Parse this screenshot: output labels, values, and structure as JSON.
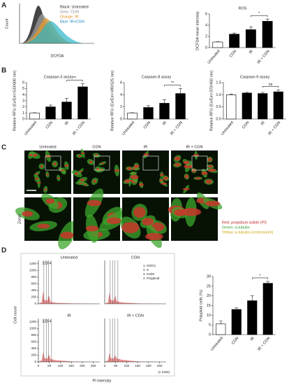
{
  "panel_labels": [
    "A",
    "B",
    "C",
    "D"
  ],
  "panel_a": {
    "legend": [
      "Black: Untreated",
      "Grey: CGN",
      "Orange: IR",
      "Blue: IR+CGN"
    ],
    "xlabel": "DCFDA",
    "ylabel": "Count"
  },
  "chart_data": [
    {
      "type": "bar",
      "title": "ROS",
      "ylabel": "DCFDA mean intensity",
      "categories": [
        "Untreated",
        "CGN",
        "IR",
        "IR + CGN"
      ],
      "values": [
        1,
        2.4,
        3.2,
        4.7
      ],
      "errors": [
        0.05,
        0.2,
        0.5,
        0.4
      ],
      "colors": [
        "#ffffff",
        "#000000",
        "#000000",
        "#000000"
      ],
      "ylim": [
        0,
        6
      ],
      "yticks": [
        0,
        2,
        4,
        6
      ],
      "significance": "*"
    },
    {
      "type": "bar",
      "title": "Caspase-3 assay",
      "ylabel": "Relative RFU (Ex/Em=533/600 nm)",
      "categories": [
        "Untreated",
        "CGN",
        "IR",
        "IR + CGN"
      ],
      "values": [
        1,
        2,
        2.8,
        5.3
      ],
      "errors": [
        0.05,
        0.3,
        0.6,
        0.5
      ],
      "colors": [
        "#ffffff",
        "#000000",
        "#000000",
        "#000000"
      ],
      "ylim": [
        0,
        6
      ],
      "yticks": [
        0,
        1,
        2,
        3,
        4,
        5,
        6
      ],
      "significance": "**"
    },
    {
      "type": "bar",
      "title": "Caspase-8 assay",
      "ylabel": "Relative RFU (Ex/Em=490/525 nm)",
      "categories": [
        "Untreated",
        "CGN",
        "IR",
        "IR + CGN"
      ],
      "values": [
        1,
        1.9,
        2.6,
        4.2
      ],
      "errors": [
        0.05,
        0.3,
        0.6,
        0.8
      ],
      "colors": [
        "#ffffff",
        "#000000",
        "#000000",
        "#000000"
      ],
      "ylim": [
        0,
        6
      ],
      "yticks": [
        0,
        2,
        4,
        6
      ],
      "significance": "**"
    },
    {
      "type": "bar",
      "title": "Caspase-9 assay",
      "ylabel": "Relative RFU (Ex/Em=370/450 nm)",
      "categories": [
        "Untreated",
        "CGN",
        "IR",
        "IR + CGN"
      ],
      "values": [
        1,
        1.07,
        1.05,
        1.12
      ],
      "errors": [
        0.03,
        0.03,
        0.05,
        0.08
      ],
      "colors": [
        "#ffffff",
        "#000000",
        "#000000",
        "#000000"
      ],
      "ylim": [
        0,
        1.5
      ],
      "yticks": [
        {
          "value": 0,
          "label": "0.0"
        },
        {
          "value": 0.5,
          "label": "0.5"
        },
        {
          "value": 1,
          "label": "1.0"
        },
        {
          "value": 1.5,
          "label": "1.5"
        }
      ],
      "significance": "ns"
    },
    {
      "type": "bar",
      "ylabel": "Polyploid cells (%)",
      "categories": [
        "Untreated",
        "CGN",
        "IR",
        "IR + CGN"
      ],
      "values": [
        5.5,
        13,
        17.5,
        26.5
      ],
      "errors": [
        1.5,
        0.8,
        2.5,
        1
      ],
      "colors": [
        "#ffffff",
        "#000000",
        "#000000",
        "#000000"
      ],
      "ylim": [
        0,
        30
      ],
      "yticks": [
        0,
        5,
        10,
        15,
        20,
        25,
        30
      ],
      "significance": "*"
    }
  ],
  "panel_c": {
    "columns": [
      "Untreated",
      "CGN",
      "IR",
      "IR + CGN"
    ],
    "row_label": "Zoom",
    "legend": [
      "Red: propidium iodide (PI)",
      "Green: α-tubulin",
      "Yellow: γ-tubulin (centrosome)"
    ]
  },
  "panel_d": {
    "titles": [
      "Untreated",
      "CGN",
      "IR",
      "IR + CGN"
    ],
    "ylabel": "Cell count",
    "xlabel": "PI intensity",
    "x_unit": "(x 1000)",
    "gate_labels": [
      "1",
      "2",
      "3",
      "4"
    ],
    "gate_legend": [
      "1. G0/G1",
      "2. S",
      "3. G2/M",
      "4. Polyploid"
    ],
    "ylim": [
      0,
      1300
    ],
    "yticks": [
      0,
      200,
      400,
      600,
      800,
      1000,
      1200
    ],
    "xlim": [
      0,
      280
    ],
    "xticks": [
      0,
      50,
      100,
      150,
      200,
      250
    ]
  }
}
